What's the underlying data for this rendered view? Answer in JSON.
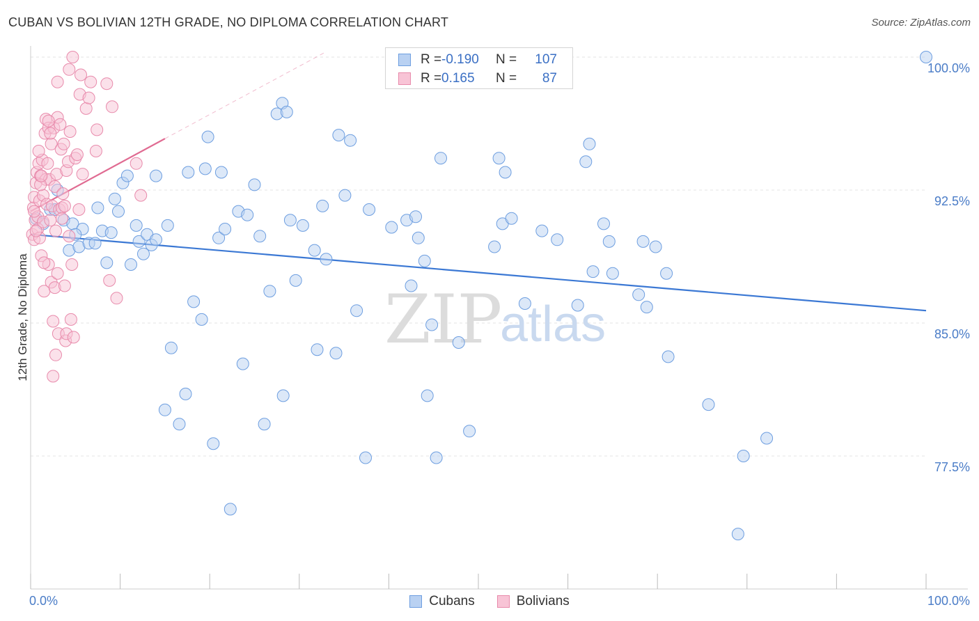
{
  "chart_data": {
    "type": "scatter",
    "title": "CUBAN VS BOLIVIAN 12TH GRADE, NO DIPLOMA CORRELATION CHART",
    "source": "Source: ZipAtlas.com",
    "xlabel": "",
    "ylabel": "12th Grade, No Diploma",
    "xlim": [
      0,
      100
    ],
    "ylim": [
      72,
      100.7
    ],
    "grid": true,
    "x_tick_labels": [
      "0.0%",
      "100.0%"
    ],
    "y_ticks": [
      {
        "value": 77.5,
        "label": "77.5%"
      },
      {
        "value": 85.0,
        "label": "85.0%"
      },
      {
        "value": 92.5,
        "label": "92.5%"
      },
      {
        "value": 100.0,
        "label": "100.0%"
      }
    ],
    "watermark": {
      "part1": "ZIP",
      "part2": "atlas"
    },
    "legend": {
      "items": [
        {
          "name": "Cubans",
          "color": "#6d9ee0"
        },
        {
          "name": "Bolivians",
          "color": "#e88aab"
        }
      ]
    },
    "stats": [
      {
        "series": "Cubans",
        "r_label": "R =",
        "r_value": "-0.190",
        "n_label": "N =",
        "n_value": "107"
      },
      {
        "series": "Bolivians",
        "r_label": "R =",
        "r_value": "0.165",
        "n_label": "N =",
        "n_value": "87"
      }
    ],
    "series": [
      {
        "name": "Cubans",
        "color": "#6d9ee0",
        "fill": "#b9d1f2",
        "trend": {
          "x": [
            0,
            100
          ],
          "y": [
            90.0,
            85.7
          ],
          "color": "#3b78d4"
        },
        "points": [
          [
            0.6,
            90.9
          ],
          [
            1.4,
            90.6
          ],
          [
            2.2,
            91.4
          ],
          [
            2.7,
            91.4
          ],
          [
            3.7,
            90.8
          ],
          [
            4.3,
            89.1
          ],
          [
            4.7,
            90.6
          ],
          [
            5.4,
            89.3
          ],
          [
            5.8,
            90.3
          ],
          [
            6.5,
            89.5
          ],
          [
            7.2,
            89.5
          ],
          [
            7.5,
            91.5
          ],
          [
            8.0,
            90.2
          ],
          [
            8.5,
            88.4
          ],
          [
            9.0,
            90.1
          ],
          [
            9.4,
            92.0
          ],
          [
            9.8,
            91.3
          ],
          [
            10.3,
            92.9
          ],
          [
            10.8,
            93.3
          ],
          [
            11.2,
            88.3
          ],
          [
            11.8,
            90.5
          ],
          [
            12.1,
            89.6
          ],
          [
            12.6,
            88.9
          ],
          [
            13.0,
            90.0
          ],
          [
            13.5,
            89.4
          ],
          [
            14.0,
            93.3
          ],
          [
            15.3,
            90.5
          ],
          [
            15.7,
            83.6
          ],
          [
            15.0,
            80.1
          ],
          [
            16.6,
            79.3
          ],
          [
            17.3,
            81.0
          ],
          [
            17.6,
            93.5
          ],
          [
            18.2,
            86.2
          ],
          [
            19.1,
            85.2
          ],
          [
            19.5,
            93.7
          ],
          [
            19.8,
            95.5
          ],
          [
            20.4,
            78.2
          ],
          [
            21.0,
            89.8
          ],
          [
            21.3,
            93.5
          ],
          [
            21.7,
            90.3
          ],
          [
            22.3,
            74.5
          ],
          [
            23.2,
            91.3
          ],
          [
            23.7,
            82.7
          ],
          [
            24.2,
            91.1
          ],
          [
            25.0,
            92.8
          ],
          [
            25.6,
            89.9
          ],
          [
            26.1,
            79.3
          ],
          [
            26.7,
            86.8
          ],
          [
            27.5,
            96.8
          ],
          [
            28.1,
            97.4
          ],
          [
            28.2,
            80.9
          ],
          [
            28.6,
            96.9
          ],
          [
            29.0,
            90.8
          ],
          [
            29.6,
            87.4
          ],
          [
            30.4,
            90.5
          ],
          [
            31.7,
            89.1
          ],
          [
            32.0,
            83.5
          ],
          [
            32.6,
            91.6
          ],
          [
            33.0,
            88.6
          ],
          [
            34.1,
            83.3
          ],
          [
            34.4,
            95.6
          ],
          [
            35.1,
            92.2
          ],
          [
            35.7,
            95.3
          ],
          [
            36.4,
            85.7
          ],
          [
            37.4,
            77.4
          ],
          [
            37.8,
            91.4
          ],
          [
            40.3,
            90.4
          ],
          [
            42.0,
            90.8
          ],
          [
            42.5,
            87.1
          ],
          [
            43.0,
            91.0
          ],
          [
            43.3,
            89.8
          ],
          [
            44.0,
            88.5
          ],
          [
            44.3,
            80.9
          ],
          [
            44.8,
            84.9
          ],
          [
            45.3,
            77.4
          ],
          [
            45.8,
            94.3
          ],
          [
            47.8,
            83.9
          ],
          [
            49.0,
            78.9
          ],
          [
            51.8,
            89.3
          ],
          [
            52.3,
            94.3
          ],
          [
            52.7,
            90.6
          ],
          [
            53.0,
            93.5
          ],
          [
            53.7,
            90.9
          ],
          [
            55.2,
            86.1
          ],
          [
            57.1,
            90.2
          ],
          [
            58.8,
            89.7
          ],
          [
            61.1,
            86.0
          ],
          [
            62.0,
            94.1
          ],
          [
            62.4,
            95.1
          ],
          [
            62.8,
            87.9
          ],
          [
            64.0,
            90.6
          ],
          [
            64.6,
            89.6
          ],
          [
            65.0,
            87.8
          ],
          [
            67.9,
            86.6
          ],
          [
            68.4,
            89.6
          ],
          [
            68.8,
            85.9
          ],
          [
            69.8,
            89.3
          ],
          [
            71.0,
            87.8
          ],
          [
            71.2,
            83.1
          ],
          [
            75.7,
            80.4
          ],
          [
            79.6,
            77.5
          ],
          [
            79.0,
            73.1
          ],
          [
            82.2,
            78.5
          ],
          [
            100.0,
            100.0
          ],
          [
            14.0,
            89.7
          ],
          [
            3.0,
            92.5
          ],
          [
            5.0,
            90.0
          ]
        ]
      },
      {
        "name": "Bolivians",
        "color": "#e88aab",
        "fill": "#f8c4d6",
        "trend": {
          "x": [
            0,
            15
          ],
          "y": [
            91.3,
            95.4
          ],
          "color": "#e06b92"
        },
        "extension": {
          "x": [
            15,
            33
          ],
          "y": [
            95.4,
            100.3
          ]
        },
        "points": [
          [
            0.2,
            90.0
          ],
          [
            0.3,
            91.5
          ],
          [
            0.4,
            92.1
          ],
          [
            0.4,
            89.7
          ],
          [
            0.5,
            90.8
          ],
          [
            0.6,
            92.9
          ],
          [
            0.7,
            93.5
          ],
          [
            0.8,
            91.0
          ],
          [
            0.8,
            90.3
          ],
          [
            0.9,
            94.0
          ],
          [
            1.0,
            89.8
          ],
          [
            1.0,
            91.9
          ],
          [
            1.1,
            93.3
          ],
          [
            1.2,
            88.8
          ],
          [
            1.3,
            94.2
          ],
          [
            1.4,
            90.7
          ],
          [
            1.4,
            92.2
          ],
          [
            1.5,
            86.8
          ],
          [
            1.6,
            95.7
          ],
          [
            1.7,
            93.1
          ],
          [
            1.7,
            96.5
          ],
          [
            1.8,
            91.7
          ],
          [
            1.9,
            94.0
          ],
          [
            2.0,
            88.3
          ],
          [
            2.0,
            96.0
          ],
          [
            2.1,
            93.1
          ],
          [
            2.2,
            90.8
          ],
          [
            2.3,
            95.1
          ],
          [
            2.3,
            87.3
          ],
          [
            2.4,
            91.6
          ],
          [
            2.5,
            85.1
          ],
          [
            2.5,
            82.0
          ],
          [
            2.6,
            96.0
          ],
          [
            2.7,
            92.7
          ],
          [
            2.7,
            87.0
          ],
          [
            2.8,
            83.2
          ],
          [
            2.8,
            90.2
          ],
          [
            2.9,
            93.4
          ],
          [
            3.0,
            87.8
          ],
          [
            3.0,
            96.6
          ],
          [
            3.1,
            84.4
          ],
          [
            3.2,
            91.4
          ],
          [
            3.3,
            96.2
          ],
          [
            3.4,
            94.8
          ],
          [
            3.5,
            91.5
          ],
          [
            3.6,
            92.3
          ],
          [
            3.7,
            95.1
          ],
          [
            3.8,
            87.1
          ],
          [
            3.8,
            91.6
          ],
          [
            3.9,
            84.0
          ],
          [
            4.0,
            93.6
          ],
          [
            4.0,
            84.4
          ],
          [
            4.2,
            94.1
          ],
          [
            4.3,
            89.9
          ],
          [
            4.4,
            95.8
          ],
          [
            4.5,
            85.2
          ],
          [
            4.6,
            88.3
          ],
          [
            4.8,
            84.2
          ],
          [
            5.0,
            94.3
          ],
          [
            5.2,
            94.5
          ],
          [
            5.4,
            91.4
          ],
          [
            5.5,
            97.9
          ],
          [
            5.6,
            99.0
          ],
          [
            5.8,
            93.4
          ],
          [
            6.2,
            97.1
          ],
          [
            6.5,
            97.7
          ],
          [
            6.7,
            98.6
          ],
          [
            7.3,
            94.7
          ],
          [
            7.4,
            95.9
          ],
          [
            8.5,
            98.5
          ],
          [
            8.8,
            87.4
          ],
          [
            9.1,
            97.2
          ],
          [
            9.6,
            86.4
          ],
          [
            11.8,
            94.0
          ],
          [
            12.3,
            92.2
          ],
          [
            4.3,
            99.3
          ],
          [
            4.7,
            100.0
          ],
          [
            3.0,
            98.6
          ],
          [
            2.0,
            96.4
          ],
          [
            1.1,
            92.8
          ],
          [
            0.9,
            94.7
          ],
          [
            1.5,
            88.4
          ],
          [
            0.6,
            90.2
          ],
          [
            2.2,
            95.7
          ],
          [
            1.2,
            93.3
          ],
          [
            0.4,
            91.3
          ],
          [
            3.5,
            90.9
          ]
        ]
      }
    ]
  }
}
